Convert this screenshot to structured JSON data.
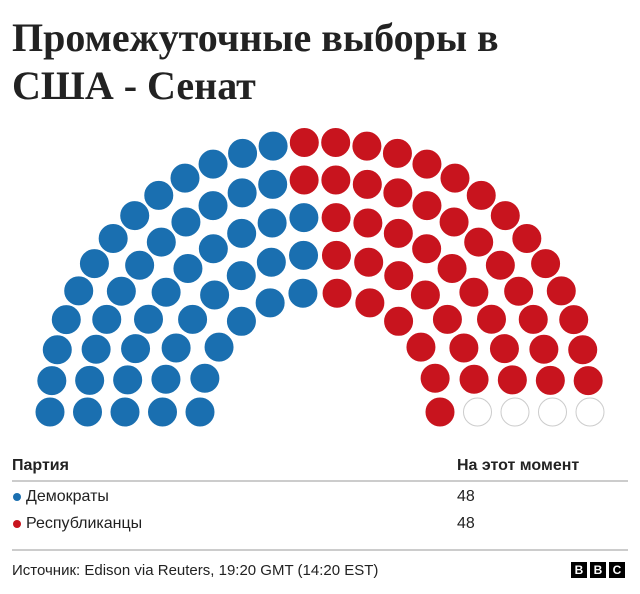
{
  "chart_data": {
    "type": "parliament",
    "title_lines": [
      "Промежуточные выборы в",
      "США - Сенат"
    ],
    "series": [
      {
        "name": "Демократы",
        "color": "#1a6fb0",
        "value": 48
      },
      {
        "name": "Республиканцы",
        "color": "#c8141e",
        "value": 48
      }
    ],
    "unassigned": {
      "color": "#ffffff",
      "value": 4
    },
    "table_header": [
      "Партия",
      "На этот момент"
    ],
    "source": "Источник: Edison via Reuters, 19:20 GMT (14:20 EST)",
    "logo": [
      "B",
      "B",
      "C"
    ]
  }
}
